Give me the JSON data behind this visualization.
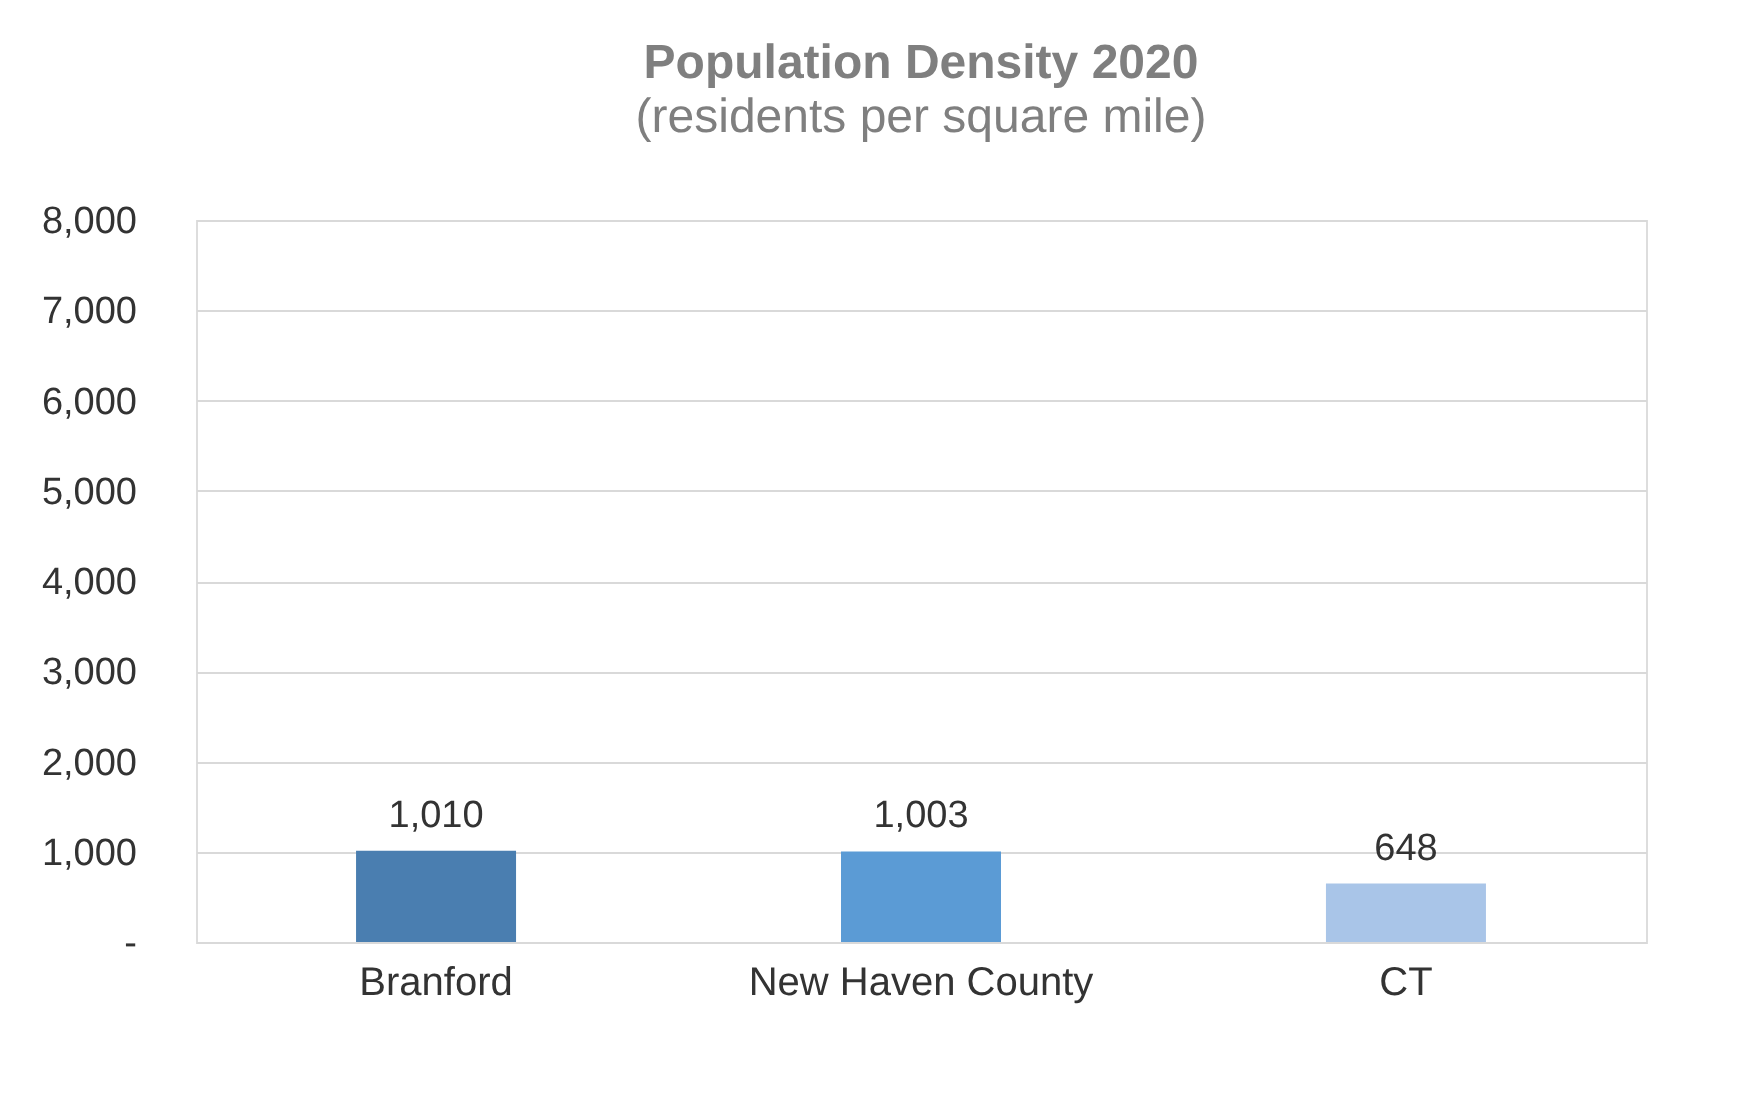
{
  "chart_data": {
    "type": "bar",
    "title": "Population Density 2020",
    "subtitle": "(residents per square mile)",
    "categories": [
      "Branford",
      "New Haven County",
      "CT"
    ],
    "values": [
      1010,
      1003,
      648
    ],
    "colors": [
      "#4a7eb0",
      "#5b9bd5",
      "#a9c5e8"
    ],
    "value_labels": [
      "1,010",
      "1,003",
      "648"
    ],
    "ylim": [
      0,
      8000
    ],
    "yticks": [
      {
        "value": 0,
        "label": "-"
      },
      {
        "value": 1000,
        "label": "1,000"
      },
      {
        "value": 2000,
        "label": "2,000"
      },
      {
        "value": 3000,
        "label": "3,000"
      },
      {
        "value": 4000,
        "label": "4,000"
      },
      {
        "value": 5000,
        "label": "5,000"
      },
      {
        "value": 6000,
        "label": "6,000"
      },
      {
        "value": 7000,
        "label": "7,000"
      },
      {
        "value": 8000,
        "label": "8,000"
      }
    ],
    "grid": "y",
    "legend": false
  }
}
